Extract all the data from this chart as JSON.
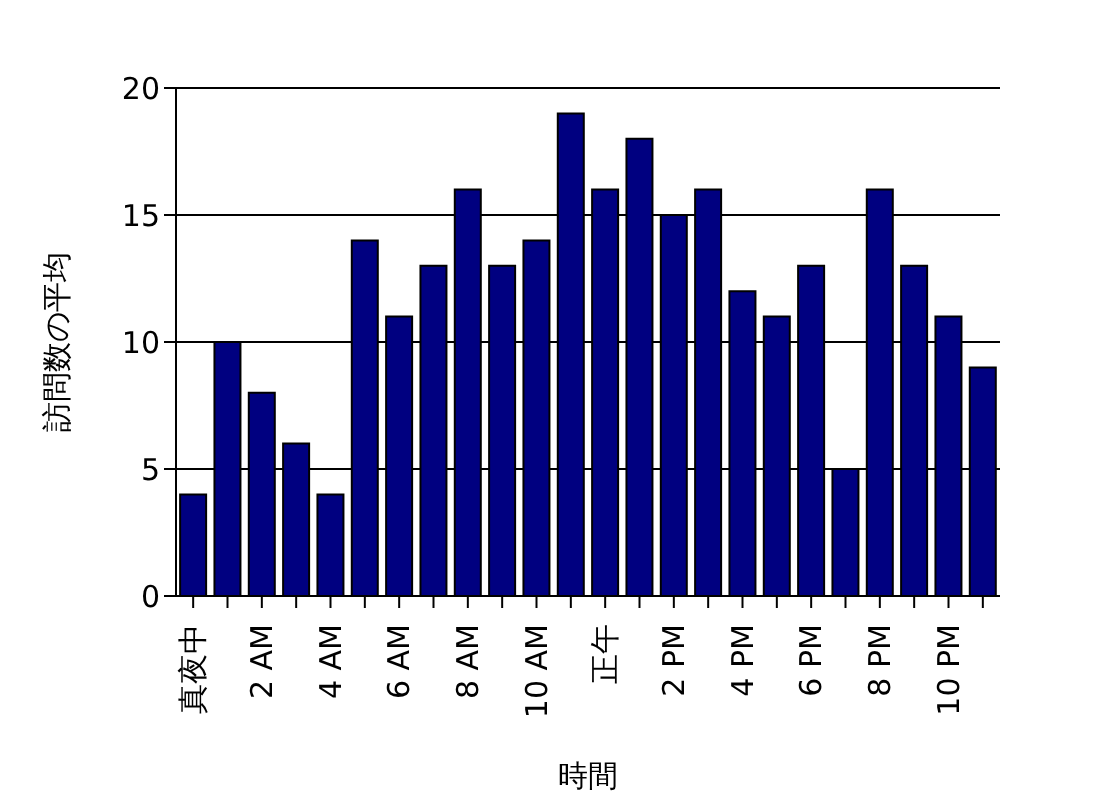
{
  "chart_data": {
    "type": "bar",
    "categories": [
      "真夜中",
      null,
      "2 AM",
      null,
      "4 AM",
      null,
      "6 AM",
      null,
      "8 AM",
      null,
      "10 AM",
      null,
      "正午",
      null,
      "2 PM",
      null,
      "4 PM",
      null,
      "6 PM",
      null,
      "8 PM",
      null,
      "10 PM",
      null
    ],
    "values": [
      4,
      10,
      8,
      6,
      4,
      14,
      11,
      13,
      16,
      13,
      14,
      19,
      16,
      18,
      15,
      16,
      12,
      11,
      13,
      5,
      16,
      13,
      11,
      9
    ],
    "color": "#000080",
    "xlabel": "時間",
    "ylabel": "訪問数の平均",
    "ylim": [
      0,
      20
    ],
    "yticks": [
      0,
      5,
      10,
      15,
      20
    ],
    "grid": "y"
  }
}
